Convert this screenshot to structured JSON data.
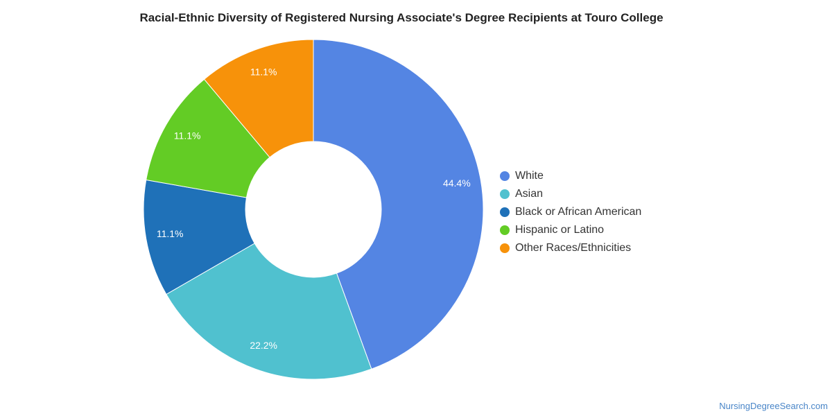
{
  "chart_data": {
    "type": "pie",
    "title": "Racial-Ethnic Diversity of Registered Nursing Associate's Degree Recipients at Touro College",
    "donut": true,
    "legend_position": "right",
    "slices": [
      {
        "label": "White",
        "value": 44.4,
        "display": "44.4%",
        "color": "#5485e3"
      },
      {
        "label": "Asian",
        "value": 22.2,
        "display": "22.2%",
        "color": "#50c1cf"
      },
      {
        "label": "Black or African American",
        "value": 11.1,
        "display": "11.1%",
        "color": "#1f71b8"
      },
      {
        "label": "Hispanic or Latino",
        "value": 11.1,
        "display": "11.1%",
        "color": "#63cc25"
      },
      {
        "label": "Other Races/Ethnicities",
        "value": 11.1,
        "display": "11.1%",
        "color": "#f7920a"
      }
    ]
  },
  "source": "NursingDegreeSearch.com"
}
